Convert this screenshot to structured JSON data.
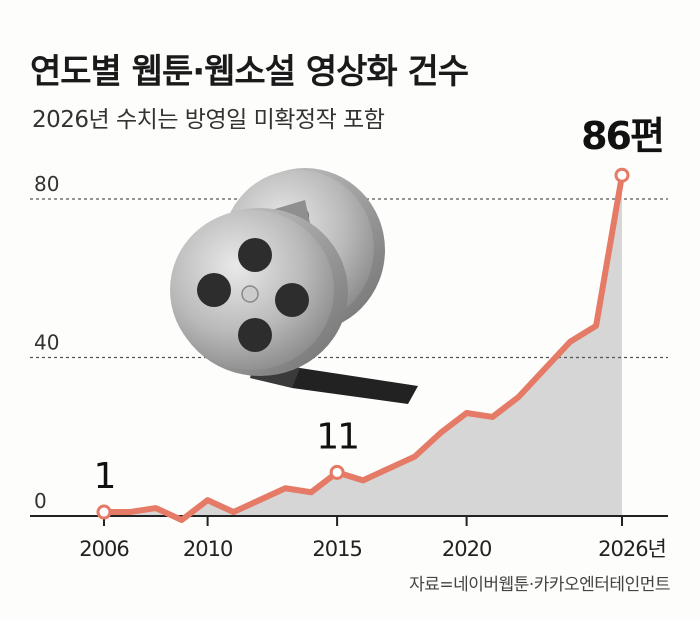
{
  "title": "연도별 웹툰·웹소설 영상화 건수",
  "subtitle": "2026년 수치는 방영일 미확정작 포함",
  "source": "자료=네이버웹툰·카카오엔터테인먼트",
  "colors": {
    "line": "#e57a66",
    "area": "#d6d6d6",
    "marker_fill": "#ffffff",
    "axis": "#222222",
    "grid": "#555555"
  },
  "chart_data": {
    "type": "area",
    "title": "연도별 웹툰·웹소설 영상화 건수",
    "subtitle": "2026년 수치는 방영일 미확정작 포함",
    "x": [
      2006,
      2007,
      2008,
      2009,
      2010,
      2011,
      2012,
      2013,
      2014,
      2015,
      2016,
      2017,
      2018,
      2019,
      2020,
      2021,
      2022,
      2023,
      2024,
      2025,
      2026
    ],
    "y": [
      1,
      1,
      2,
      -1,
      4,
      1,
      4,
      7,
      6,
      11,
      9,
      12,
      15,
      21,
      26,
      25,
      30,
      37,
      44,
      48,
      86
    ],
    "xlim": [
      2006,
      2026
    ],
    "ylim": [
      0,
      86
    ],
    "yticks": [
      "0",
      "40",
      "80"
    ],
    "xticks": [
      "2006",
      "2010",
      "2015",
      "2020",
      "2026년"
    ],
    "grid": "dashed horizontal at 40 and 80",
    "annotations": [
      {
        "x": 2006,
        "y": 1,
        "label": "1"
      },
      {
        "x": 2015,
        "y": 11,
        "label": "11"
      },
      {
        "x": 2026,
        "y": 86,
        "label": "86편"
      }
    ]
  },
  "decoration": {
    "icon": "film-reel-icon"
  }
}
